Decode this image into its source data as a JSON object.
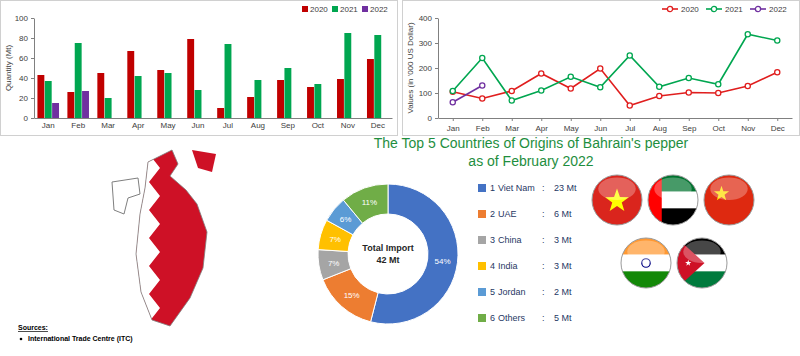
{
  "chart_data": [
    {
      "type": "bar",
      "y_label": "Quantity (Mt)",
      "categories": [
        "Jan",
        "Feb",
        "Mar",
        "Apr",
        "May",
        "Jun",
        "Jul",
        "Aug",
        "Sep",
        "Oct",
        "Nov",
        "Dec"
      ],
      "series": [
        {
          "name": "2020",
          "color": "#c00000",
          "values": [
            43,
            26,
            45,
            67,
            48,
            79,
            10,
            21,
            38,
            31,
            39,
            59
          ]
        },
        {
          "name": "2021",
          "color": "#00a650",
          "values": [
            37,
            75,
            20,
            42,
            45,
            28,
            74,
            38,
            50,
            34,
            85,
            83
          ]
        },
        {
          "name": "2022",
          "color": "#7030a0",
          "values": [
            15,
            27,
            null,
            null,
            null,
            null,
            null,
            null,
            null,
            null,
            null,
            null
          ]
        }
      ],
      "ylim": [
        0,
        100
      ],
      "yticks": [
        0,
        20,
        40,
        60,
        80,
        100
      ],
      "grid": false,
      "legend": "top-right"
    },
    {
      "type": "line",
      "y_label": "Values (in '000 US Dollar)",
      "categories": [
        "Jan",
        "Feb",
        "Mar",
        "Apr",
        "May",
        "Jun",
        "Jul",
        "Aug",
        "Sep",
        "Oct",
        "Nov",
        "Dec"
      ],
      "series": [
        {
          "name": "2020",
          "color": "#e01e1e",
          "values": [
            105,
            78,
            108,
            178,
            118,
            198,
            50,
            88,
            102,
            100,
            128,
            183
          ]
        },
        {
          "name": "2021",
          "color": "#00a650",
          "values": [
            108,
            240,
            70,
            110,
            165,
            123,
            250,
            125,
            160,
            135,
            335,
            310
          ]
        },
        {
          "name": "2022",
          "color": "#7030a0",
          "values": [
            63,
            130,
            null,
            null,
            null,
            null,
            null,
            null,
            null,
            null,
            null,
            null
          ]
        }
      ],
      "ylim": [
        0,
        400
      ],
      "yticks": [
        0,
        100,
        200,
        300,
        400
      ],
      "grid": false,
      "legend": "top-right",
      "marker": "circle"
    },
    {
      "type": "donut",
      "title": "The Top 5 Countries of Origins of Bahrain's pepper",
      "subtitle": "as of February 2022",
      "center_label": "Total Import",
      "total_label": "42 Mt",
      "categories": [
        "Viet Nam",
        "UAE",
        "China",
        "India",
        "Jordan",
        "Others"
      ],
      "ranks": [
        1,
        2,
        3,
        4,
        5,
        6
      ],
      "separator": ":",
      "quantity_labels": [
        "23 Mt",
        "6 Mt",
        "3 Mt",
        "3 Mt",
        "2 Mt",
        "5 Mt"
      ],
      "values": [
        54,
        15,
        7,
        7,
        6,
        11
      ],
      "value_labels": [
        "54%",
        "15%",
        "7%",
        "7%",
        "6%",
        "11%"
      ],
      "colors": [
        "#4472c4",
        "#ed7d31",
        "#a5a5a5",
        "#ffc000",
        "#5b9bd5",
        "#70ad47"
      ],
      "data_labels": true
    }
  ],
  "sources": {
    "heading": "Sources:",
    "items": [
      "International Trade Centre (ITC)"
    ]
  }
}
